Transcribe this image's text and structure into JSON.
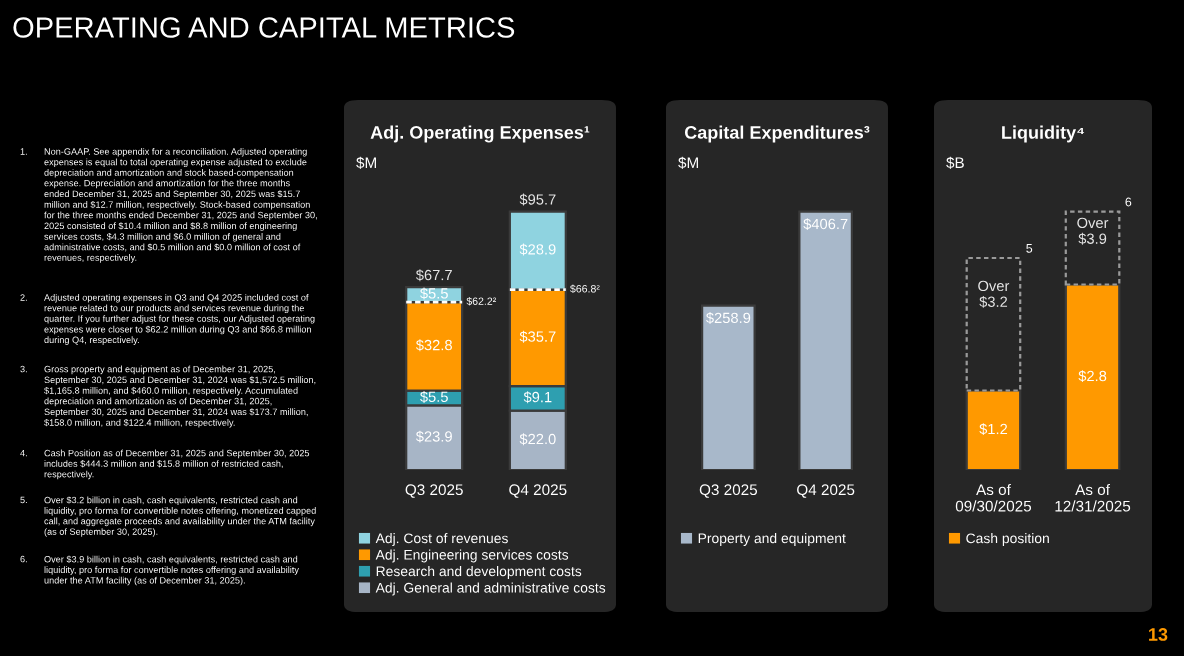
{
  "chart_data": [
    {
      "type": "other",
      "title": "OPERATING AND CAPITAL METRICS",
      "annotations": [
        "1. Non-GAAP. See appendix for a reconciliation. Adjusted operating expenses is equal to total operating expense adjusted to exclude depreciation and amortization and stock based-compensation expense. Depreciation and amortization for the three months ended December 31, 2025 and September 30, 2025 was $15.7 million and $12.7 million, respectively. Stock-based compensation for the three months ended December 31, 2025 and September 30, 2025 consisted of $10.4 million and $8.8 million of engineering services costs, $4.3 million and $6.0 million of general and administrative costs, and $0.5 million and $0.0 million of cost of revenues, respectively.",
        "2. Adjusted operating expenses in Q3 and Q4 2025 included cost of revenue related to our products and services revenue during the quarter. If you further adjust for these costs, our Adjusted operating expenses were closer to $62.2 million during Q3 and $66.8 million during Q4, respectively.",
        "3. Gross property and equipment as of December 31, 2025, September 30, 2025 and December 31, 2024 was $1,572.5 million, $1,165.8 million, and $460.0 million, respectively. Accumulated depreciation and amortization as of December 31, 2025, September 30, 2025 and December 31, 2024 was $173.7 million, $158.0 million, and $122.4 million, respectively.",
        "4. Cash Position as of December 31, 2025 and September 30, 2025 includes $444.3 million and $15.8 million of restricted cash, respectively.",
        "5. Over $3.2 billion in cash, cash equivalents, restricted cash and liquidity, pro forma for convertible notes offering, monetized capped call, and aggregate proceeds and availability under the ATM facility (as of September 30, 2025).",
        "6. Over $3.9 billion in cash, cash equivalents, restricted cash and liquidity, pro forma for convertible notes offering and availability under the ATM facility (as of December 31, 2025).",
        "13"
      ]
    },
    {
      "type": "bar",
      "title": "Adj. Operating Expenses¹",
      "ylabel": "$M",
      "stacked": true,
      "categories": [
        "Q3 2025",
        "Q4 2025"
      ],
      "tick_labels": "x",
      "legend": "bottom",
      "totals": [
        "$67.7",
        "$95.7"
      ],
      "series": [
        {
          "name": "Adj. General and administrative costs",
          "color": "#a7b5c6",
          "values": [
            23.9,
            22.0
          ],
          "value_labels": [
            "$23.9",
            "$22.0"
          ]
        },
        {
          "name": "Research and development costs",
          "color": "#2e9fb0",
          "values": [
            5.5,
            9.1
          ],
          "value_labels": [
            "$5.5",
            "$9.1"
          ]
        },
        {
          "name": "Adj. Engineering services costs",
          "color": "#ff9900",
          "values": [
            32.8,
            35.7
          ],
          "value_labels": [
            "$32.8",
            "$35.7"
          ]
        },
        {
          "name": "Adj. Cost of revenues",
          "color": "#8fd3e0",
          "values": [
            5.5,
            28.9
          ],
          "value_labels": [
            "$5.5",
            "$28.9"
          ]
        }
      ],
      "annotations": [
        "$62.2²",
        "$66.8²"
      ]
    },
    {
      "type": "bar",
      "title": "Capital Expenditures³",
      "ylabel": "$M",
      "categories": [
        "Q3 2025",
        "Q4 2025"
      ],
      "tick_labels": "x",
      "legend": "bottom",
      "series": [
        {
          "name": "Property and equipment",
          "color": "#a8b8ca",
          "values": [
            258.9,
            406.7
          ],
          "value_labels": [
            "$258.9",
            "$406.7"
          ]
        }
      ]
    },
    {
      "type": "bar",
      "title": "Liquidity⁴",
      "ylabel": "$B",
      "stacked": true,
      "categories": [
        "As of\n09/30/2025",
        "As of\n12/31/2025"
      ],
      "tick_labels": "x",
      "legend": "bottom",
      "series": [
        {
          "name": "Cash position",
          "color": "#ff9900",
          "values": [
            1.2,
            2.8
          ],
          "value_labels": [
            "$1.2",
            "$2.8"
          ]
        },
        {
          "color": "#262626",
          "line_style": "dashed",
          "values": [
            2.0,
            1.1
          ],
          "value_labels": [
            "Over\n$3.2",
            "Over\n$3.9"
          ]
        }
      ],
      "annotations": [
        {
          "text": "5",
          "x": "As of\n09/30/2025",
          "y": 3.2
        },
        {
          "text": "6",
          "x": "As of\n12/31/2025",
          "y": 3.9
        }
      ]
    }
  ]
}
